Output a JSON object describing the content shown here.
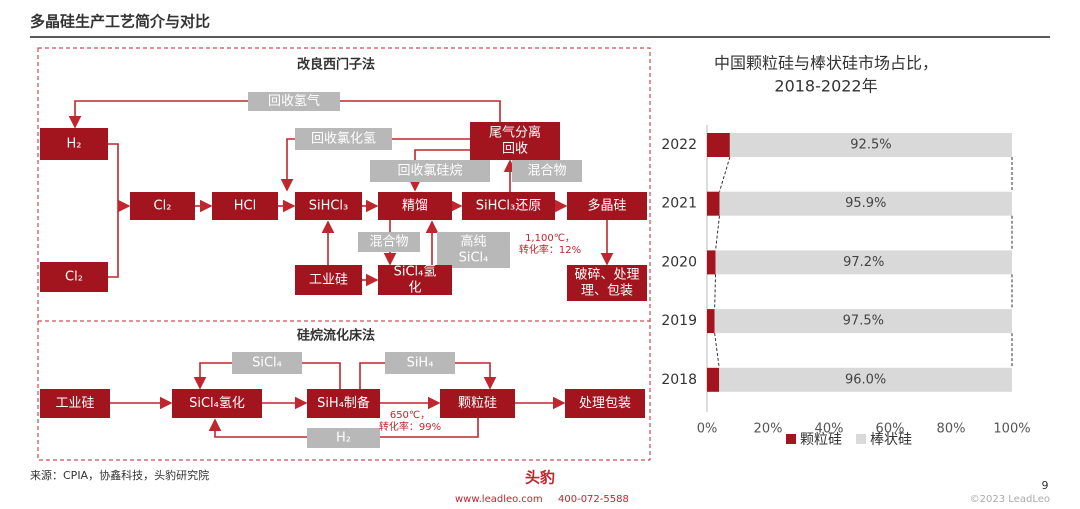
{
  "header": {
    "title": "多晶硅生产工艺简介与对比"
  },
  "siemens": {
    "title": "改良西门子法",
    "nodes": {
      "h2": "H₂",
      "cl2a": "Cl₂",
      "cl2b": "Cl₂",
      "hcl": "HCl",
      "sihcl3": "SiHCl₃",
      "distill": "精馏",
      "reduce": "SiHCl₃还原",
      "poly": "多晶硅",
      "tail": [
        "尾气分离",
        "回收"
      ],
      "mgsi": "工业硅",
      "hydro": [
        "SiCl₄氢",
        "化"
      ],
      "pack": [
        "破碎、处理",
        "理、包装"
      ]
    },
    "labels": {
      "rh2": "回收氢气",
      "rhcl": "回收氯化氢",
      "rcs": "回收氯硅烷",
      "mix1": "混合物",
      "mix2": "混合物",
      "sicl4": [
        "高纯",
        "SiCl₄"
      ]
    },
    "note": [
      "1,100℃，",
      "转化率：12%"
    ]
  },
  "fbr": {
    "title": "硅烷流化床法",
    "nodes": {
      "mgsi": "工业硅",
      "hydro": "SiCl₄氢化",
      "sih4": "SiH₄制备",
      "gran": "颗粒硅",
      "pack": "处理包装"
    },
    "labels": {
      "sicl4": "SiCl₄",
      "sih4": "SiH₄",
      "h2": "H₂"
    },
    "note": [
      "650℃，",
      "转化率：99%"
    ]
  },
  "chart_data": {
    "type": "bar",
    "orientation": "horizontal",
    "stacked": true,
    "title": [
      "中国颗粒硅与棒状硅市场占比，",
      "2018-2022年"
    ],
    "categories": [
      "2022",
      "2021",
      "2020",
      "2019",
      "2018"
    ],
    "series": [
      {
        "name": "颗粒硅",
        "color": "#a3151e",
        "values": [
          7.5,
          4.1,
          2.8,
          2.5,
          4.0
        ]
      },
      {
        "name": "棒状硅",
        "color": "#d9d9d9",
        "values": [
          92.5,
          95.9,
          97.2,
          97.5,
          96.0
        ],
        "value_labels": [
          "92.5%",
          "95.9%",
          "97.2%",
          "97.5%",
          "96.0%"
        ]
      }
    ],
    "xlim": [
      0,
      100
    ],
    "xticks": [
      {
        "value": 0,
        "label": "0%"
      },
      {
        "value": 20,
        "label": "20%"
      },
      {
        "value": 40,
        "label": "40%"
      },
      {
        "value": 60,
        "label": "60%"
      },
      {
        "value": 80,
        "label": "80%"
      },
      {
        "value": 100,
        "label": "100%"
      }
    ],
    "legend": "bottom"
  },
  "footer": {
    "source": "来源：CPIA，协鑫科技，头豹研究院",
    "logo": "头豹",
    "site": "www.leadleo.com",
    "phone": "400-072-5588",
    "page": "9",
    "copyright": "©2023 LeadLeo"
  }
}
